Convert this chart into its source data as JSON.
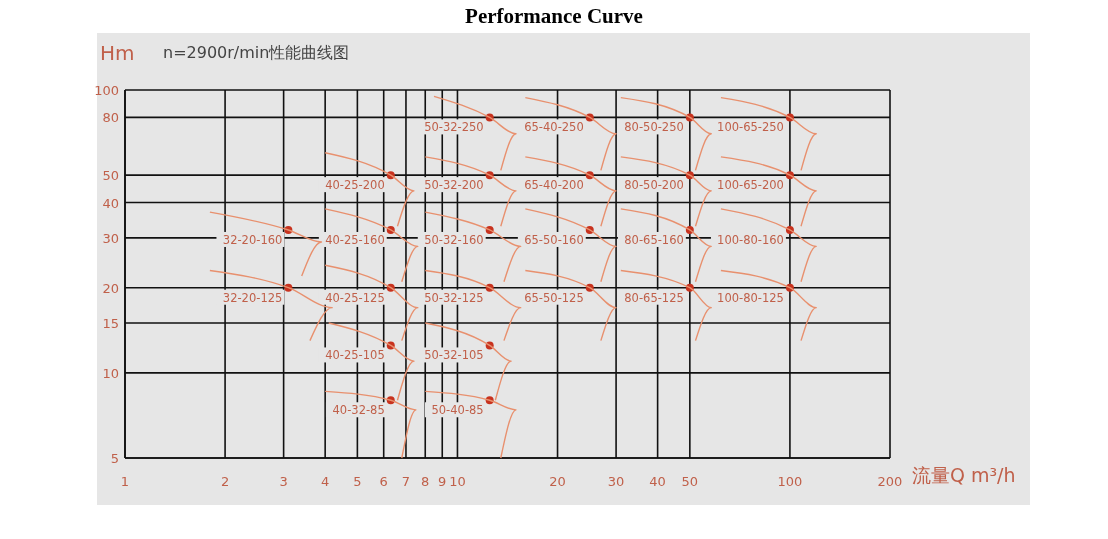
{
  "chart_data": {
    "type": "line",
    "title": "Performance Curve",
    "subtitle": "n=2900r/min性能曲线图",
    "ylabel": "Hm",
    "xlabel": "流量Q m³/h",
    "log": "xy",
    "grid": true,
    "xlim": [
      1,
      200
    ],
    "xticks": [
      1,
      2,
      3,
      4,
      5,
      6,
      7,
      8,
      9,
      10,
      20,
      30,
      40,
      50,
      100,
      200
    ],
    "ylim": [
      5,
      100
    ],
    "yticks": [
      5,
      10,
      15,
      20,
      30,
      40,
      50,
      80,
      100
    ],
    "series": [
      {
        "type": "scatter",
        "color": "#c8321e",
        "marker": "circle",
        "x": [
          3.1,
          3.1,
          6.3,
          6.3,
          6.3,
          6.3,
          6.3,
          12.5,
          12.5,
          12.5,
          12.5,
          12.5,
          12.5,
          25,
          25,
          25,
          25,
          50,
          50,
          50,
          50,
          100,
          100,
          100,
          100
        ],
        "values": [
          32,
          20,
          50,
          32,
          20,
          12.5,
          8,
          80,
          50,
          32,
          20,
          12.5,
          8,
          80,
          50,
          32,
          20,
          80,
          50,
          32,
          20,
          80,
          50,
          32,
          20
        ]
      },
      {
        "color": "#e8906e",
        "x": [
          1.8,
          3.1,
          3.9,
          3.4
        ],
        "values": [
          37,
          32,
          29,
          22
        ]
      },
      {
        "color": "#e8906e",
        "x": [
          1.8,
          3.1,
          4.2,
          3.6
        ],
        "values": [
          23,
          20,
          17,
          13
        ]
      },
      {
        "color": "#e8906e",
        "x": [
          4,
          6.3,
          7.4,
          6.6
        ],
        "values": [
          60,
          50,
          44,
          33
        ]
      },
      {
        "color": "#e8906e",
        "x": [
          4,
          6.3,
          7.6,
          6.8
        ],
        "values": [
          38,
          32,
          28,
          21
        ]
      },
      {
        "color": "#e8906e",
        "x": [
          4,
          6.3,
          7.6,
          6.8
        ],
        "values": [
          24,
          20,
          17,
          13
        ]
      },
      {
        "color": "#e8906e",
        "x": [
          4.1,
          6.3,
          7.4,
          6.6
        ],
        "values": [
          15,
          12.5,
          11,
          8
        ]
      },
      {
        "color": "#e8906e",
        "x": [
          4,
          6.3,
          7.5,
          6.8
        ],
        "values": [
          8.6,
          8,
          7.4,
          5
        ]
      },
      {
        "color": "#e8906e",
        "x": [
          8.5,
          12.5,
          15,
          13.5
        ],
        "values": [
          95,
          80,
          70,
          52
        ]
      },
      {
        "color": "#e8906e",
        "x": [
          8,
          12.5,
          15,
          13.5
        ],
        "values": [
          58,
          50,
          44,
          33
        ]
      },
      {
        "color": "#e8906e",
        "x": [
          8,
          12.5,
          15.5,
          13.8
        ],
        "values": [
          37,
          32,
          28,
          21
        ]
      },
      {
        "color": "#e8906e",
        "x": [
          8,
          12.5,
          15.5,
          13.8
        ],
        "values": [
          23,
          20,
          17,
          13
        ]
      },
      {
        "color": "#e8906e",
        "x": [
          8,
          12.5,
          14.5,
          13
        ],
        "values": [
          15,
          12.5,
          11,
          8
        ]
      },
      {
        "color": "#e8906e",
        "x": [
          8,
          12.5,
          15,
          13.5
        ],
        "values": [
          8.6,
          8,
          7.4,
          5
        ]
      },
      {
        "color": "#e8906e",
        "x": [
          16,
          25,
          30,
          27
        ],
        "values": [
          94,
          80,
          70,
          52
        ]
      },
      {
        "color": "#e8906e",
        "x": [
          16,
          25,
          30,
          27
        ],
        "values": [
          58,
          50,
          44,
          33
        ]
      },
      {
        "color": "#e8906e",
        "x": [
          16,
          25,
          30,
          27
        ],
        "values": [
          38,
          32,
          28,
          21
        ]
      },
      {
        "color": "#e8906e",
        "x": [
          16,
          25,
          30,
          27
        ],
        "values": [
          23,
          20,
          17,
          13
        ]
      },
      {
        "color": "#e8906e",
        "x": [
          31,
          50,
          58,
          52
        ],
        "values": [
          94,
          80,
          70,
          52
        ]
      },
      {
        "color": "#e8906e",
        "x": [
          31,
          50,
          58,
          52
        ],
        "values": [
          58,
          50,
          44,
          33
        ]
      },
      {
        "color": "#e8906e",
        "x": [
          31,
          50,
          58,
          52
        ],
        "values": [
          38,
          32,
          28,
          21
        ]
      },
      {
        "color": "#e8906e",
        "x": [
          31,
          50,
          58,
          52
        ],
        "values": [
          23,
          20,
          17,
          13
        ]
      },
      {
        "color": "#e8906e",
        "x": [
          62,
          100,
          120,
          108
        ],
        "values": [
          94,
          80,
          70,
          52
        ]
      },
      {
        "color": "#e8906e",
        "x": [
          62,
          100,
          120,
          108
        ],
        "values": [
          58,
          50,
          44,
          33
        ]
      },
      {
        "color": "#e8906e",
        "x": [
          62,
          100,
          120,
          108
        ],
        "values": [
          38,
          32,
          28,
          21
        ]
      },
      {
        "color": "#e8906e",
        "x": [
          62,
          100,
          120,
          108
        ],
        "values": [
          23,
          20,
          17,
          13
        ]
      }
    ],
    "annotations": [
      {
        "text": "32-20-160",
        "x": 3.1,
        "y": 32
      },
      {
        "text": "32-20-125",
        "x": 3.1,
        "y": 20
      },
      {
        "text": "40-25-200",
        "x": 6.3,
        "y": 50
      },
      {
        "text": "40-25-160",
        "x": 6.3,
        "y": 32
      },
      {
        "text": "40-25-125",
        "x": 6.3,
        "y": 20
      },
      {
        "text": "40-25-105",
        "x": 6.3,
        "y": 12.5
      },
      {
        "text": "40-32-85",
        "x": 6.3,
        "y": 8
      },
      {
        "text": "50-32-250",
        "x": 12.5,
        "y": 80
      },
      {
        "text": "50-32-200",
        "x": 12.5,
        "y": 50
      },
      {
        "text": "50-32-160",
        "x": 12.5,
        "y": 32
      },
      {
        "text": "50-32-125",
        "x": 12.5,
        "y": 20
      },
      {
        "text": "50-32-105",
        "x": 12.5,
        "y": 12.5
      },
      {
        "text": "50-40-85",
        "x": 12.5,
        "y": 8
      },
      {
        "text": "65-40-250",
        "x": 25,
        "y": 80
      },
      {
        "text": "65-40-200",
        "x": 25,
        "y": 50
      },
      {
        "text": "65-50-160",
        "x": 25,
        "y": 32
      },
      {
        "text": "65-50-125",
        "x": 25,
        "y": 20
      },
      {
        "text": "80-50-250",
        "x": 50,
        "y": 80
      },
      {
        "text": "80-50-200",
        "x": 50,
        "y": 50
      },
      {
        "text": "80-65-160",
        "x": 50,
        "y": 32
      },
      {
        "text": "80-65-125",
        "x": 50,
        "y": 20
      },
      {
        "text": "100-65-250",
        "x": 100,
        "y": 80
      },
      {
        "text": "100-65-200",
        "x": 100,
        "y": 50
      },
      {
        "text": "100-80-160",
        "x": 100,
        "y": 32
      },
      {
        "text": "100-80-125",
        "x": 100,
        "y": 20
      }
    ]
  }
}
